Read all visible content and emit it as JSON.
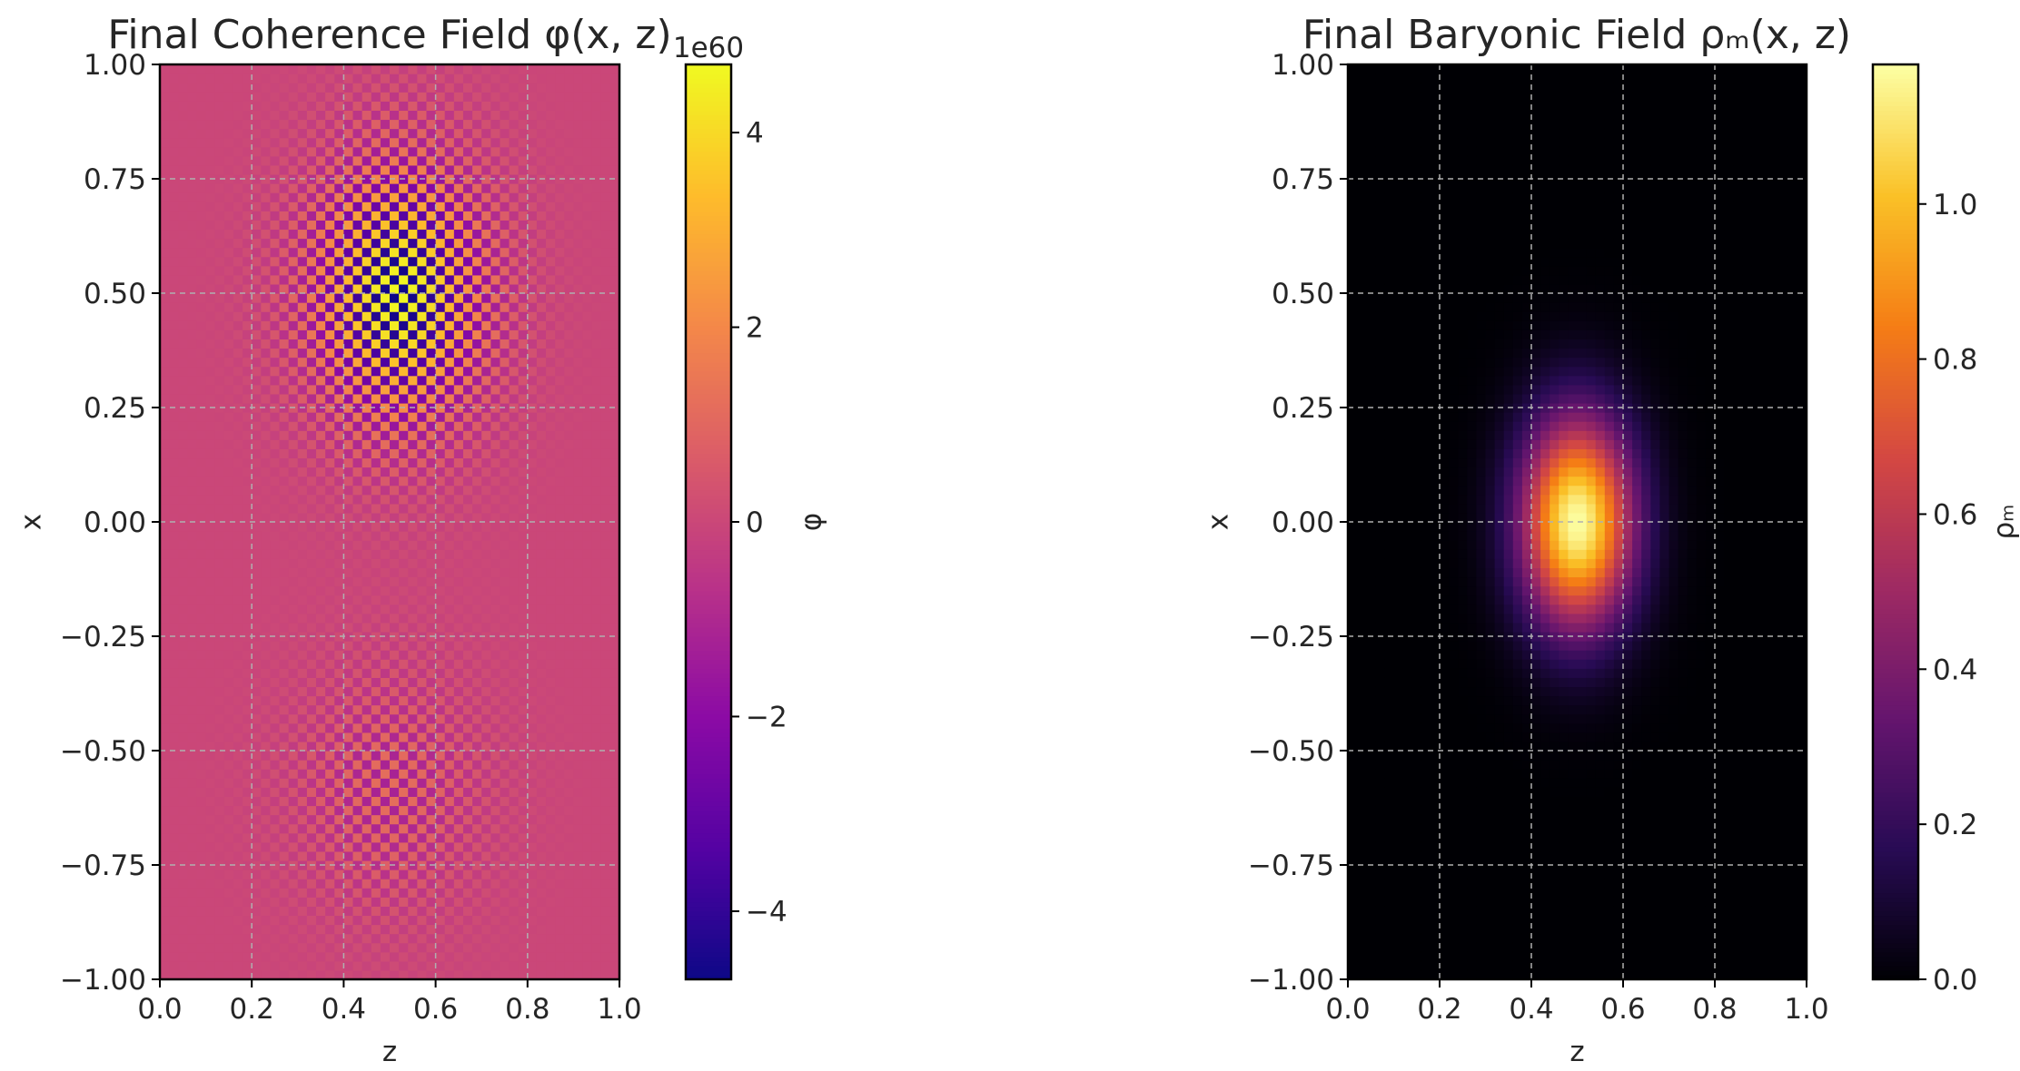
{
  "chart_data": [
    {
      "type": "heatmap",
      "title": "Final Coherence Field φ(x, z)",
      "xlabel": "z",
      "ylabel": "x",
      "xlim": [
        0.0,
        1.0
      ],
      "ylim": [
        -1.0,
        1.0
      ],
      "x_ticks": [
        "0.0",
        "0.2",
        "0.4",
        "0.6",
        "0.8",
        "1.0"
      ],
      "y_ticks": [
        "−1.00",
        "−0.75",
        "−0.50",
        "−0.25",
        "0.00",
        "0.25",
        "0.50",
        "0.75",
        "1.00"
      ],
      "grid": true,
      "colormap": "plasma",
      "colorbar": {
        "label": "φ",
        "range": [
          -4.7,
          4.7
        ],
        "ticks": [
          "−4",
          "−2",
          "0",
          "2",
          "4"
        ],
        "offset_text": "1e60"
      },
      "field": {
        "description": "checkerboard oscillation",
        "cells_z": 50,
        "cells_x": 100,
        "background": 0.0,
        "blobs": [
          {
            "z": 0.52,
            "x": 0.5,
            "sigma_z": 0.13,
            "sigma_x": 0.2,
            "amplitude": 4.7
          },
          {
            "z": 0.5,
            "x": -0.58,
            "sigma_z": 0.14,
            "sigma_x": 0.18,
            "amplitude": 1.2
          }
        ]
      }
    },
    {
      "type": "heatmap",
      "title": "Final Baryonic Field ρₘ(x, z)",
      "xlabel": "z",
      "ylabel": "x",
      "xlim": [
        0.0,
        1.0
      ],
      "ylim": [
        -1.0,
        1.0
      ],
      "x_ticks": [
        "0.0",
        "0.2",
        "0.4",
        "0.6",
        "0.8",
        "1.0"
      ],
      "y_ticks": [
        "−1.00",
        "−0.75",
        "−0.50",
        "−0.25",
        "0.00",
        "0.25",
        "0.50",
        "0.75",
        "1.00"
      ],
      "grid": true,
      "colormap": "inferno",
      "colorbar": {
        "label": "ρₘ",
        "range": [
          0.0,
          1.18
        ],
        "ticks": [
          "0.0",
          "0.2",
          "0.4",
          "0.6",
          "0.8",
          "1.0"
        ]
      },
      "field": {
        "cells_z": 50,
        "cells_x": 100,
        "center_z": 0.5,
        "center_x": 0.0,
        "sigma_z": 0.085,
        "sigma_x": 0.16,
        "peak": 1.18
      }
    }
  ]
}
